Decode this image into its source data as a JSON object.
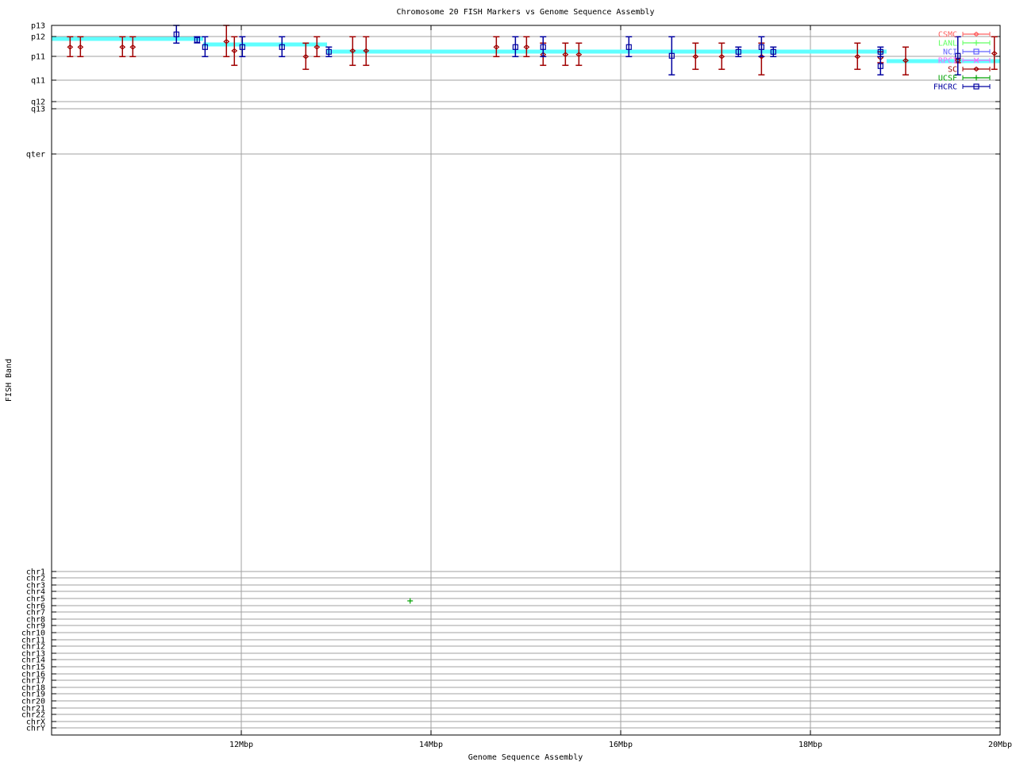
{
  "chart_data": {
    "type": "scatter",
    "title": "Chromosome 20 FISH Markers vs Genome Sequence Assembly",
    "xlabel": "Genome Sequence Assembly",
    "ylabel": "FISH Band",
    "xlim": [
      10,
      20
    ],
    "ylim": [
      0,
      89.4
    ],
    "y_reversed": true,
    "grid": true,
    "legend_placement": "top-right",
    "xticks": [
      {
        "value": 12,
        "label": "12Mbp"
      },
      {
        "value": 14,
        "label": "14Mbp"
      },
      {
        "value": 16,
        "label": "16Mbp"
      },
      {
        "value": 18,
        "label": "18Mbp"
      },
      {
        "value": 20,
        "label": "20Mbp"
      }
    ],
    "yticks": [
      {
        "value": 0,
        "label": "p13"
      },
      {
        "value": 1.4,
        "label": "p12"
      },
      {
        "value": 3.9,
        "label": "p11"
      },
      {
        "value": 6.9,
        "label": "q11"
      },
      {
        "value": 9.6,
        "label": "q12"
      },
      {
        "value": 10.5,
        "label": "q13"
      },
      {
        "value": 16.2,
        "label": "qter"
      },
      {
        "value": 68.8,
        "label": "chr1"
      },
      {
        "value": 69.6,
        "label": "chr2"
      },
      {
        "value": 70.5,
        "label": "chr3"
      },
      {
        "value": 71.3,
        "label": "chr4"
      },
      {
        "value": 72.2,
        "label": "chr5"
      },
      {
        "value": 73.1,
        "label": "chr6"
      },
      {
        "value": 73.9,
        "label": "chr7"
      },
      {
        "value": 74.8,
        "label": "chr8"
      },
      {
        "value": 75.6,
        "label": "chr9"
      },
      {
        "value": 76.5,
        "label": "chr10"
      },
      {
        "value": 77.4,
        "label": "chr11"
      },
      {
        "value": 78.2,
        "label": "chr12"
      },
      {
        "value": 79.1,
        "label": "chr13"
      },
      {
        "value": 79.9,
        "label": "chr14"
      },
      {
        "value": 80.8,
        "label": "chr15"
      },
      {
        "value": 81.7,
        "label": "chr16"
      },
      {
        "value": 82.5,
        "label": "chr17"
      },
      {
        "value": 83.4,
        "label": "chr18"
      },
      {
        "value": 84.2,
        "label": "chr19"
      },
      {
        "value": 85.1,
        "label": "chr20"
      },
      {
        "value": 86.0,
        "label": "chr21"
      },
      {
        "value": 86.8,
        "label": "chr22"
      },
      {
        "value": 87.7,
        "label": "chrX"
      },
      {
        "value": 88.5,
        "label": "chrY"
      }
    ],
    "series": [
      {
        "name": "CSMC",
        "color": "#ff6060",
        "marker": "diamond",
        "points": []
      },
      {
        "name": "LANL",
        "color": "#60ff60",
        "marker": "plus",
        "points": []
      },
      {
        "name": "NCI",
        "color": "#6060ff",
        "marker": "square",
        "points": []
      },
      {
        "name": "RPCI",
        "color": "#ff60ff",
        "marker": "cross",
        "points": []
      },
      {
        "name": "SC",
        "color": "#a00000",
        "marker": "diamond",
        "points": [
          [
            10.195,
            2.73,
            1.43,
            3.93
          ],
          [
            10.304,
            2.73,
            1.43,
            3.93
          ],
          [
            10.747,
            2.73,
            1.43,
            3.93
          ],
          [
            10.856,
            2.73,
            1.43,
            3.93
          ],
          [
            11.843,
            2.03,
            0,
            3.93
          ],
          [
            11.927,
            3.2,
            1.43,
            5.03
          ],
          [
            12.68,
            3.93,
            2.23,
            5.53
          ],
          [
            12.797,
            2.73,
            1.43,
            3.93
          ],
          [
            13.174,
            3.2,
            1.43,
            5.03
          ],
          [
            13.316,
            3.2,
            1.43,
            5.03
          ],
          [
            14.689,
            2.73,
            1.43,
            3.93
          ],
          [
            15.007,
            2.73,
            1.43,
            3.93
          ],
          [
            15.182,
            3.67,
            2.23,
            5.03
          ],
          [
            15.417,
            3.67,
            2.23,
            5.03
          ],
          [
            15.559,
            3.67,
            2.23,
            5.03
          ],
          [
            16.789,
            3.93,
            2.23,
            5.53
          ],
          [
            17.065,
            3.93,
            2.23,
            5.53
          ],
          [
            17.484,
            3.93,
            2.23,
            6.23
          ],
          [
            18.496,
            3.93,
            2.23,
            5.53
          ],
          [
            18.739,
            4.07,
            3.33,
            4.7
          ],
          [
            19.004,
            4.43,
            2.73,
            6.23
          ],
          [
            19.554,
            4.43,
            4.2,
            4.7
          ],
          [
            19.939,
            3.53,
            1.43,
            5.53
          ]
        ]
      },
      {
        "name": "UCSF",
        "color": "#00a000",
        "marker": "plus",
        "points": [
          [
            13.78,
            72.5,
            72.5,
            72.5
          ]
        ]
      },
      {
        "name": "FHCRC",
        "color": "#0000a0",
        "marker": "square",
        "points": [
          [
            11.316,
            1.13,
            0,
            2.23
          ],
          [
            11.534,
            1.83,
            1.43,
            2.2
          ],
          [
            11.618,
            2.73,
            1.43,
            3.93
          ],
          [
            12.011,
            2.73,
            1.43,
            3.93
          ],
          [
            12.429,
            2.73,
            1.43,
            3.93
          ],
          [
            12.923,
            3.33,
            2.73,
            3.93
          ],
          [
            14.89,
            2.73,
            1.43,
            3.93
          ],
          [
            15.182,
            2.73,
            1.43,
            3.93
          ],
          [
            16.086,
            2.73,
            1.43,
            3.93
          ],
          [
            16.538,
            3.83,
            1.43,
            6.23
          ],
          [
            17.241,
            3.33,
            2.73,
            3.93
          ],
          [
            17.484,
            2.73,
            1.43,
            3.93
          ],
          [
            17.609,
            3.33,
            2.73,
            3.93
          ],
          [
            18.739,
            3.33,
            2.73,
            3.93
          ],
          [
            18.739,
            5.13,
            3.93,
            6.23
          ],
          [
            19.554,
            3.83,
            1.43,
            6.23
          ]
        ]
      }
    ],
    "assembly_line": {
      "color": "#60ffff",
      "steps": [
        [
          10,
          11.598,
          1.7
        ],
        [
          11.598,
          12.904,
          2.4
        ],
        [
          12.904,
          18.803,
          3.3
        ],
        [
          18.803,
          20,
          4.5
        ]
      ]
    }
  }
}
